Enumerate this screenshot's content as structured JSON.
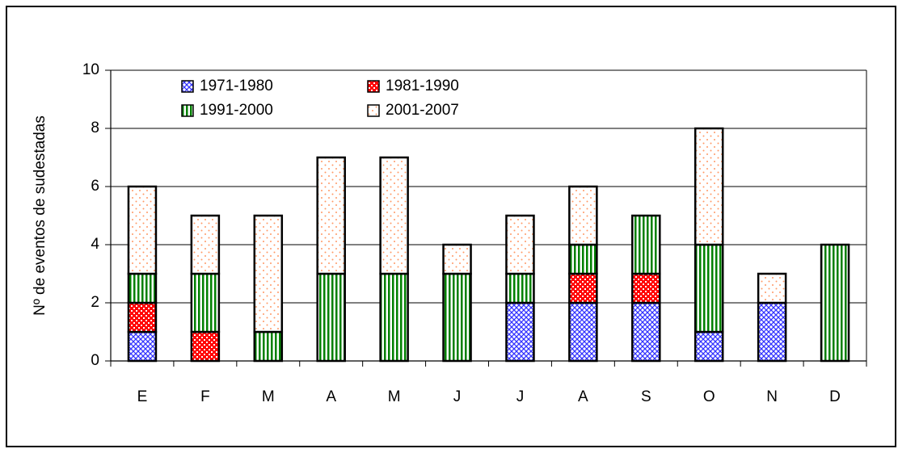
{
  "chart_data": {
    "type": "stacked_bar",
    "y_label": "Nº de eventos de sudestadas",
    "categories": [
      "E",
      "F",
      "M",
      "A",
      "M",
      "J",
      "J",
      "A",
      "S",
      "O",
      "N",
      "D"
    ],
    "series": [
      {
        "name": "1971-1980",
        "color": "#3333ff",
        "pattern": "crosshatch",
        "values": [
          1,
          0,
          0,
          0,
          0,
          0,
          2,
          2,
          2,
          1,
          2,
          0
        ]
      },
      {
        "name": "1981-1990",
        "color": "#ff0000",
        "pattern": "checker",
        "values": [
          1,
          1,
          0,
          0,
          0,
          0,
          0,
          1,
          1,
          0,
          0,
          0
        ]
      },
      {
        "name": "1991-2000",
        "color": "#008000",
        "pattern": "vertical",
        "values": [
          1,
          2,
          1,
          3,
          3,
          3,
          1,
          1,
          2,
          3,
          0,
          4
        ]
      },
      {
        "name": "2001-2007",
        "color": "#ff9966",
        "pattern": "dots",
        "values": [
          3,
          2,
          4,
          4,
          4,
          1,
          2,
          2,
          0,
          4,
          1,
          0
        ]
      }
    ],
    "ylim": [
      0,
      10
    ],
    "yticks": [
      0,
      2,
      4,
      6,
      8,
      10
    ],
    "grid": true
  }
}
